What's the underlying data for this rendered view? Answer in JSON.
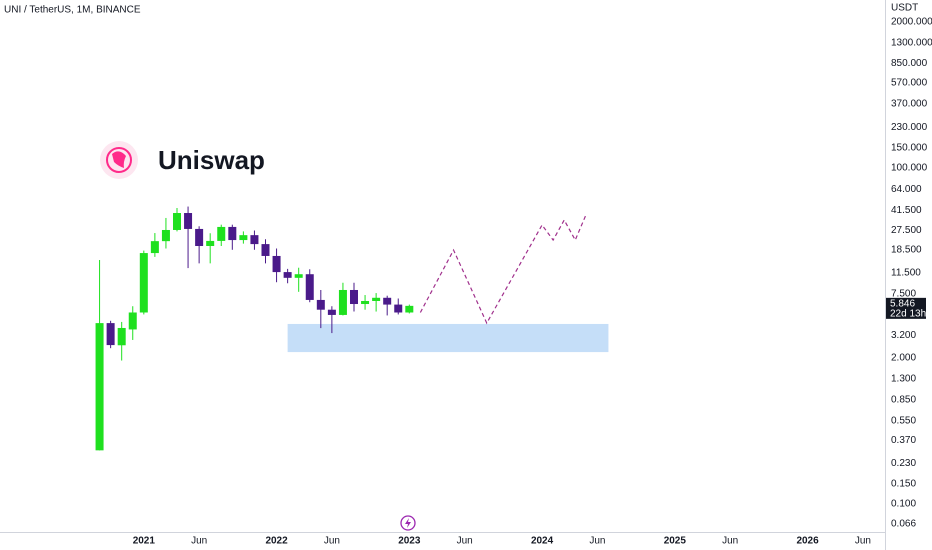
{
  "chart_data": {
    "type": "candlestick",
    "title": "UNI / TetherUS, 1M, BINANCE",
    "brand": "Uniswap",
    "y_axis_label": "USDT",
    "countdown": "22d 13h",
    "log_scale": true,
    "up_color": "#1fe01f",
    "down_color": "#4a1a8a",
    "x": [
      "2020-09",
      "2020-10",
      "2020-11",
      "2020-12",
      "2021-01",
      "2021-02",
      "2021-03",
      "2021-04",
      "2021-05",
      "2021-06",
      "2021-07",
      "2021-08",
      "2021-09",
      "2021-10",
      "2021-11",
      "2021-12",
      "2022-01",
      "2022-02",
      "2022-03",
      "2022-04",
      "2022-05",
      "2022-06",
      "2022-07",
      "2022-08",
      "2022-09",
      "2022-10",
      "2022-11",
      "2022-12",
      "2023-01"
    ],
    "open": [
      0.3,
      4.1,
      2.6,
      3.6,
      5.1,
      17.3,
      22.1,
      27.8,
      39.4,
      28.4,
      20,
      22.2,
      29.6,
      22.6,
      25,
      20.8,
      16.3,
      11.7,
      10.4,
      11.2,
      6.6,
      5.4,
      4.85,
      8.1,
      6.07,
      6.46,
      6.9,
      6.0,
      5.1
    ],
    "high": [
      15,
      4.3,
      4.2,
      5.8,
      18.2,
      26.1,
      35.6,
      43.7,
      45,
      30,
      26,
      31,
      31,
      27,
      27.5,
      23,
      19,
      12.5,
      12.8,
      12.4,
      8.1,
      5.8,
      9.4,
      9.4,
      7.3,
      7.6,
      7.2,
      6.8,
      6.0
    ],
    "low": [
      0.3,
      2.45,
      1.9,
      2.9,
      4.9,
      16,
      19,
      27,
      12.7,
      14,
      14,
      20,
      18.5,
      21,
      18.5,
      14,
      9.5,
      9.3,
      7.8,
      6.3,
      3.7,
      3.34,
      4.8,
      5.2,
      5.4,
      5.2,
      4.8,
      4.9,
      5.0
    ],
    "close": [
      4.1,
      2.61,
      3.71,
      5.1,
      17.3,
      22.1,
      27.8,
      39.4,
      28.4,
      20,
      22.2,
      29.6,
      22.6,
      25,
      20.8,
      16.3,
      11.7,
      10.4,
      11.2,
      6.6,
      5.4,
      4.85,
      8.1,
      6.07,
      6.46,
      6.9,
      6.0,
      5.1,
      5.846
    ],
    "projection": {
      "color": "#a0308c",
      "x": [
        "2023-02",
        "2023-05",
        "2023-08",
        "2024-01",
        "2024-02",
        "2024-03",
        "2024-04",
        "2024-05"
      ],
      "values": [
        5.1,
        18.4,
        4.1,
        30.8,
        22.6,
        34.1,
        22.6,
        38.6
      ]
    },
    "zone": {
      "color": "#c5def8",
      "x": [
        "2022-02",
        "2024-07"
      ],
      "y": [
        2.26,
        4.03
      ]
    },
    "xlim": [
      "2019-12",
      "2026-08"
    ],
    "xticks": [
      {
        "value": "2021-01",
        "label": "2021"
      },
      {
        "value": "2021-06",
        "label": "Jun"
      },
      {
        "value": "2022-01",
        "label": "2022"
      },
      {
        "value": "2022-06",
        "label": "Jun"
      },
      {
        "value": "2023-01",
        "label": "2023"
      },
      {
        "value": "2023-06",
        "label": "Jun"
      },
      {
        "value": "2024-01",
        "label": "2024"
      },
      {
        "value": "2024-06",
        "label": "Jun"
      },
      {
        "value": "2025-01",
        "label": "2025"
      },
      {
        "value": "2025-06",
        "label": "Jun"
      },
      {
        "value": "2026-01",
        "label": "2026"
      },
      {
        "value": "2026-06",
        "label": "Jun"
      }
    ],
    "ylim": [
      0.056,
      3140
    ],
    "yticks": [
      {
        "value": 2000,
        "label": "2000.000"
      },
      {
        "value": 1300,
        "label": "1300.000"
      },
      {
        "value": 850,
        "label": "850.000"
      },
      {
        "value": 570,
        "label": "570.000"
      },
      {
        "value": 370,
        "label": "370.000"
      },
      {
        "value": 230,
        "label": "230.000"
      },
      {
        "value": 150,
        "label": "150.000"
      },
      {
        "value": 100,
        "label": "100.000"
      },
      {
        "value": 64,
        "label": "64.000"
      },
      {
        "value": 41.5,
        "label": "41.500"
      },
      {
        "value": 27.5,
        "label": "27.500"
      },
      {
        "value": 18.5,
        "label": "18.500"
      },
      {
        "value": 11.5,
        "label": "11.500"
      },
      {
        "value": 7.5,
        "label": "7.500"
      },
      {
        "value": 3.2,
        "label": "3.200"
      },
      {
        "value": 2,
        "label": "2.000"
      },
      {
        "value": 1.3,
        "label": "1.300"
      },
      {
        "value": 0.85,
        "label": "0.850"
      },
      {
        "value": 0.55,
        "label": "0.550"
      },
      {
        "value": 0.37,
        "label": "0.370"
      },
      {
        "value": 0.23,
        "label": "0.230"
      },
      {
        "value": 0.15,
        "label": "0.150"
      },
      {
        "value": 0.1,
        "label": "0.100"
      },
      {
        "value": 0.066,
        "label": "0.066"
      }
    ]
  }
}
